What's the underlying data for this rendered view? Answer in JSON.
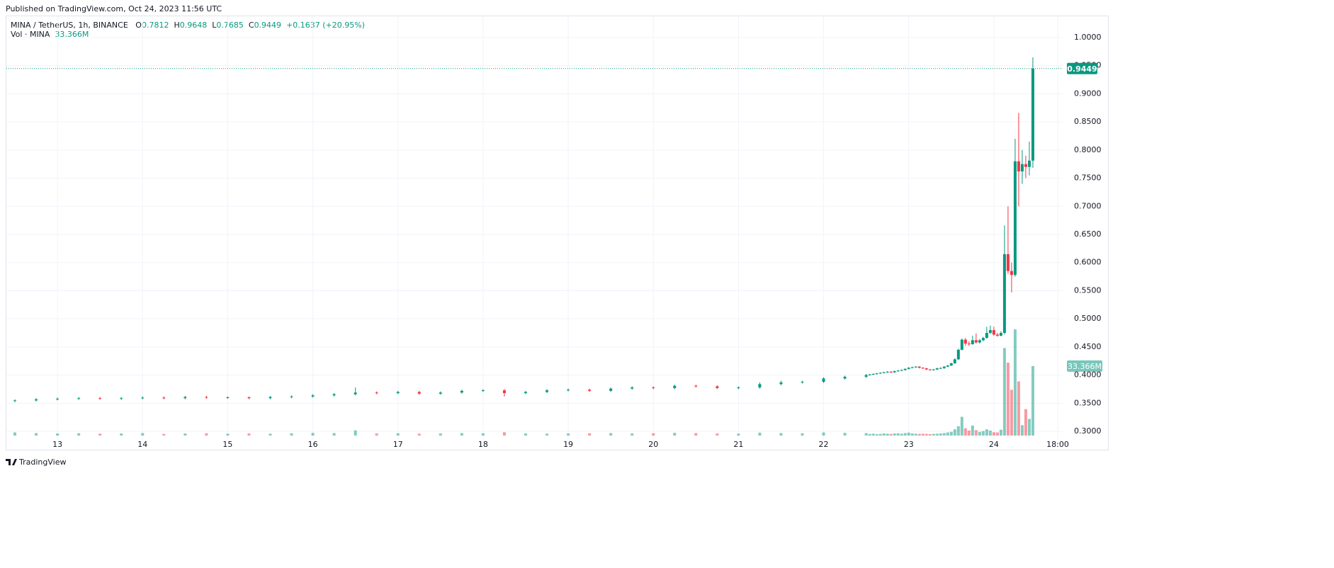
{
  "published": "Published on TradingView.com, Oct 24, 2023 11:56 UTC",
  "brand": "TradingView",
  "chart_data": {
    "type": "candlestick",
    "title": "MINA / TetherUS, 1h, BINANCE",
    "ohlc_letters": [
      "O",
      "H",
      "L",
      "C"
    ],
    "change": "+0.1637 (+20.95%)",
    "volume_title": "Vol · MINA",
    "last_volume_label": "33.366M",
    "up_color": "#089981",
    "down_color": "#f23645",
    "grid": true,
    "x": [
      -12,
      -6,
      0,
      6,
      12,
      18,
      24,
      30,
      36,
      42,
      48,
      54,
      60,
      66,
      72,
      78,
      84,
      90,
      96,
      102,
      108,
      114,
      120,
      126,
      132,
      138,
      144,
      150,
      156,
      162,
      168,
      174,
      180,
      186,
      192,
      198,
      204,
      210,
      216,
      222,
      228,
      229,
      230,
      231,
      232,
      233,
      234,
      235,
      236,
      237,
      238,
      239,
      240,
      241,
      242,
      243,
      244,
      245,
      246,
      247,
      248,
      249,
      250,
      251,
      252,
      253,
      254,
      255,
      256,
      257,
      258,
      259,
      260,
      261,
      262,
      263,
      264,
      265,
      266,
      267,
      268,
      269,
      270,
      271,
      272,
      273,
      274,
      275
    ],
    "open": [
      0.354,
      0.355,
      0.357,
      0.358,
      0.359,
      0.358,
      0.359,
      0.36,
      0.359,
      0.361,
      0.36,
      0.3605,
      0.359,
      0.361,
      0.362,
      0.364,
      0.366,
      0.369,
      0.368,
      0.37,
      0.367,
      0.369,
      0.372,
      0.373,
      0.368,
      0.37,
      0.373,
      0.374,
      0.372,
      0.376,
      0.378,
      0.377,
      0.381,
      0.38,
      0.377,
      0.378,
      0.384,
      0.387,
      0.388,
      0.394,
      0.397,
      0.4,
      0.401,
      0.402,
      0.403,
      0.404,
      0.405,
      0.406,
      0.405,
      0.407,
      0.408,
      0.409,
      0.411,
      0.413,
      0.414,
      0.415,
      0.413,
      0.412,
      0.41,
      0.409,
      0.41,
      0.412,
      0.4125,
      0.415,
      0.417,
      0.421,
      0.428,
      0.445,
      0.463,
      0.456,
      0.455,
      0.462,
      0.458,
      0.462,
      0.466,
      0.475,
      0.48,
      0.472,
      0.47,
      0.475,
      0.615,
      0.585,
      0.578,
      0.78,
      0.762,
      0.775,
      0.77,
      0.7812
    ],
    "high": [
      0.357,
      0.359,
      0.36,
      0.361,
      0.361,
      0.361,
      0.362,
      0.362,
      0.363,
      0.363,
      0.362,
      0.362,
      0.363,
      0.364,
      0.366,
      0.368,
      0.378,
      0.371,
      0.372,
      0.372,
      0.371,
      0.374,
      0.375,
      0.375,
      0.372,
      0.375,
      0.376,
      0.376,
      0.378,
      0.38,
      0.38,
      0.383,
      0.383,
      0.382,
      0.38,
      0.387,
      0.39,
      0.39,
      0.396,
      0.399,
      0.402,
      0.402,
      0.403,
      0.404,
      0.405,
      0.406,
      0.407,
      0.407,
      0.408,
      0.409,
      0.41,
      0.412,
      0.414,
      0.415,
      0.416,
      0.416,
      0.414,
      0.413,
      0.411,
      0.411,
      0.413,
      0.414,
      0.416,
      0.418,
      0.422,
      0.43,
      0.447,
      0.465,
      0.466,
      0.46,
      0.47,
      0.474,
      0.464,
      0.468,
      0.486,
      0.488,
      0.486,
      0.475,
      0.478,
      0.666,
      0.7,
      0.6,
      0.82,
      0.866,
      0.8,
      0.79,
      0.815,
      0.9648
    ],
    "low": [
      0.352,
      0.353,
      0.355,
      0.356,
      0.356,
      0.356,
      0.357,
      0.357,
      0.357,
      0.358,
      0.358,
      0.357,
      0.357,
      0.359,
      0.36,
      0.362,
      0.364,
      0.366,
      0.366,
      0.365,
      0.365,
      0.367,
      0.37,
      0.362,
      0.366,
      0.368,
      0.371,
      0.37,
      0.37,
      0.374,
      0.375,
      0.375,
      0.378,
      0.375,
      0.375,
      0.376,
      0.382,
      0.385,
      0.386,
      0.392,
      0.395,
      0.399,
      0.4,
      0.401,
      0.402,
      0.403,
      0.404,
      0.404,
      0.404,
      0.406,
      0.407,
      0.408,
      0.41,
      0.412,
      0.413,
      0.412,
      0.411,
      0.409,
      0.408,
      0.408,
      0.409,
      0.411,
      0.411,
      0.414,
      0.416,
      0.42,
      0.427,
      0.444,
      0.452,
      0.452,
      0.454,
      0.456,
      0.456,
      0.46,
      0.465,
      0.473,
      0.47,
      0.468,
      0.469,
      0.472,
      0.58,
      0.547,
      0.575,
      0.7,
      0.74,
      0.75,
      0.755,
      0.7685
    ],
    "close": [
      0.355,
      0.357,
      0.358,
      0.359,
      0.358,
      0.359,
      0.36,
      0.359,
      0.361,
      0.36,
      0.3605,
      0.359,
      0.361,
      0.362,
      0.364,
      0.366,
      0.369,
      0.368,
      0.37,
      0.367,
      0.369,
      0.372,
      0.373,
      0.368,
      0.37,
      0.373,
      0.374,
      0.372,
      0.376,
      0.378,
      0.377,
      0.381,
      0.38,
      0.377,
      0.378,
      0.384,
      0.387,
      0.388,
      0.394,
      0.397,
      0.4,
      0.401,
      0.402,
      0.403,
      0.404,
      0.405,
      0.406,
      0.405,
      0.407,
      0.408,
      0.409,
      0.411,
      0.413,
      0.414,
      0.415,
      0.413,
      0.412,
      0.41,
      0.409,
      0.41,
      0.412,
      0.4125,
      0.415,
      0.417,
      0.421,
      0.428,
      0.445,
      0.463,
      0.456,
      0.455,
      0.462,
      0.458,
      0.462,
      0.466,
      0.475,
      0.48,
      0.472,
      0.47,
      0.475,
      0.615,
      0.585,
      0.578,
      0.78,
      0.762,
      0.775,
      0.77,
      0.7812,
      0.9449
    ],
    "volume": [
      1.5,
      1.2,
      1.0,
      1.1,
      0.9,
      1.0,
      1.2,
      0.8,
      1.0,
      1.1,
      0.9,
      1.0,
      0.9,
      1.1,
      1.3,
      1.2,
      2.5,
      1.0,
      1.1,
      0.9,
      1.0,
      1.2,
      1.1,
      1.6,
      1.0,
      0.9,
      1.0,
      1.1,
      1.2,
      1.0,
      1.1,
      1.3,
      1.2,
      1.0,
      0.9,
      1.4,
      1.2,
      1.1,
      1.5,
      1.3,
      1.2,
      0.8,
      0.9,
      0.7,
      0.8,
      1.0,
      0.9,
      0.8,
      1.0,
      1.1,
      0.9,
      1.2,
      1.4,
      1.0,
      0.9,
      0.8,
      0.9,
      0.8,
      0.7,
      0.8,
      0.9,
      1.0,
      1.2,
      1.5,
      1.8,
      3.0,
      4.5,
      9.0,
      3.5,
      2.4,
      4.8,
      2.6,
      1.8,
      2.2,
      3.0,
      2.4,
      1.6,
      1.5,
      2.8,
      42,
      35,
      22,
      51,
      26,
      5,
      12.7,
      8,
      33.366
    ],
    "xlim": [
      -14.6,
      283.4
    ],
    "xticks": [
      {
        "value": 0,
        "label": "13"
      },
      {
        "value": 24,
        "label": "14"
      },
      {
        "value": 48,
        "label": "15"
      },
      {
        "value": 72,
        "label": "16"
      },
      {
        "value": 96,
        "label": "17"
      },
      {
        "value": 120,
        "label": "18"
      },
      {
        "value": 144,
        "label": "19"
      },
      {
        "value": 168,
        "label": "20"
      },
      {
        "value": 192,
        "label": "21"
      },
      {
        "value": 216,
        "label": "22"
      },
      {
        "value": 240,
        "label": "23"
      },
      {
        "value": 264,
        "label": "24"
      },
      {
        "value": 282,
        "label": "18:00"
      }
    ],
    "ylim": [
      0.29,
      1.039
    ],
    "yticks": [
      {
        "value": 0.3,
        "label": "0.3000"
      },
      {
        "value": 0.35,
        "label": "0.3500"
      },
      {
        "value": 0.4,
        "label": "0.4000"
      },
      {
        "value": 0.45,
        "label": "0.4500"
      },
      {
        "value": 0.5,
        "label": "0.5000"
      },
      {
        "value": 0.55,
        "label": "0.5500"
      },
      {
        "value": 0.6,
        "label": "0.6000"
      },
      {
        "value": 0.65,
        "label": "0.6500"
      },
      {
        "value": 0.7,
        "label": "0.7000"
      },
      {
        "value": 0.75,
        "label": "0.7500"
      },
      {
        "value": 0.8,
        "label": "0.8000"
      },
      {
        "value": 0.85,
        "label": "0.8500"
      },
      {
        "value": 0.9,
        "label": "0.9000"
      },
      {
        "value": 0.95,
        "label": "0.9500"
      },
      {
        "value": 1.0,
        "label": "1.0000"
      }
    ],
    "vlim": [
      0,
      100
    ]
  }
}
